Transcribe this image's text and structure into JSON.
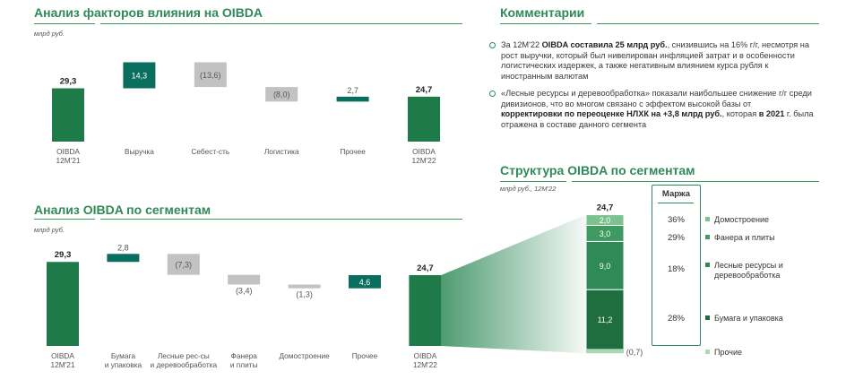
{
  "colors": {
    "accent": "#2f8a57",
    "bar_dark": "#1e7a48",
    "bar_teal": "#0a6e5e",
    "bar_grey": "#c2c2c2",
    "seg_paper": "#1e6e40",
    "seg_forest": "#2f8a57",
    "seg_plywood": "#3f9a62",
    "seg_house": "#7cc28f",
    "seg_other": "#a8d8b4"
  },
  "chart_data": [
    {
      "type": "bar",
      "subtype": "waterfall",
      "title": "Анализ факторов влияния на OIBDA",
      "unit": "млрд руб.",
      "categories": [
        "OIBDA\n12М'21",
        "Выручка",
        "Себест-сть",
        "Логистика",
        "Прочее",
        "OIBDA\n12М'22"
      ],
      "values": [
        29.3,
        14.3,
        -13.6,
        -8.0,
        2.7,
        24.7
      ],
      "labels": [
        "29,3",
        "14,3",
        "(13,6)",
        "(8,0)",
        "2,7",
        "24,7"
      ],
      "kinds": [
        "total",
        "increase",
        "decrease",
        "decrease",
        "increase",
        "total"
      ]
    },
    {
      "type": "bar",
      "subtype": "waterfall",
      "title": "Анализ OIBDA по сегментам",
      "unit": "млрд руб.",
      "categories": [
        "OIBDA\n12М'21",
        "Бумага\nи упаковка",
        "Лесные рес-сы\nи деревообработка",
        "Фанера\nи плиты",
        "Домостроение",
        "Прочее",
        "OIBDA\n12М'22"
      ],
      "values": [
        29.3,
        2.8,
        -7.3,
        -3.4,
        -1.3,
        4.6,
        24.7
      ],
      "labels": [
        "29,3",
        "2,8",
        "(7,3)",
        "(3,4)",
        "(1,3)",
        "4,6",
        "24,7"
      ],
      "kinds": [
        "total",
        "increase",
        "decrease",
        "decrease",
        "decrease",
        "increase",
        "total"
      ]
    },
    {
      "type": "bar",
      "subtype": "stacked",
      "title": "Структура OIBDA по сегментам",
      "unit": "млрд руб., 12М'22",
      "total_label": "24,7",
      "segments": [
        {
          "name": "Бумага и упаковка",
          "value": 11.2,
          "label": "11,2",
          "margin": "28%"
        },
        {
          "name": "Лесные ресурсы и деревообработка",
          "value": 9.0,
          "label": "9,0",
          "margin": "18%"
        },
        {
          "name": "Фанера и плиты",
          "value": 3.0,
          "label": "3,0",
          "margin": "29%"
        },
        {
          "name": "Домостроение",
          "value": 2.0,
          "label": "2,0",
          "margin": "36%"
        }
      ],
      "other": {
        "name": "Прочие",
        "value": -0.7,
        "label": "(0,7)"
      },
      "margin_header": "Маржа"
    }
  ],
  "comments": {
    "title": "Комментарии",
    "items": [
      {
        "p1": "За 12М'22 ",
        "b1": "OIBDA составила 25 млрд руб.",
        "p2": ", снизившись на 16% г/г, несмотря на рост выручки, который был нивелирован инфляцией затрат и в особенности логистических издержек, а также негативным влиянием курса рубля к иностранным валютам"
      },
      {
        "p1": "«Лесные ресурсы и деревообработка» показали наибольшее снижение г/г среди дивизионов, что во многом связано с эффектом высокой базы  от ",
        "b1": "корректировки по переоценке НЛХК на +3,8 млрд руб.",
        "p2": ", которая ",
        "b2": "в 2021",
        "p3": " г. была отражена в составе данного сегмента"
      }
    ]
  }
}
